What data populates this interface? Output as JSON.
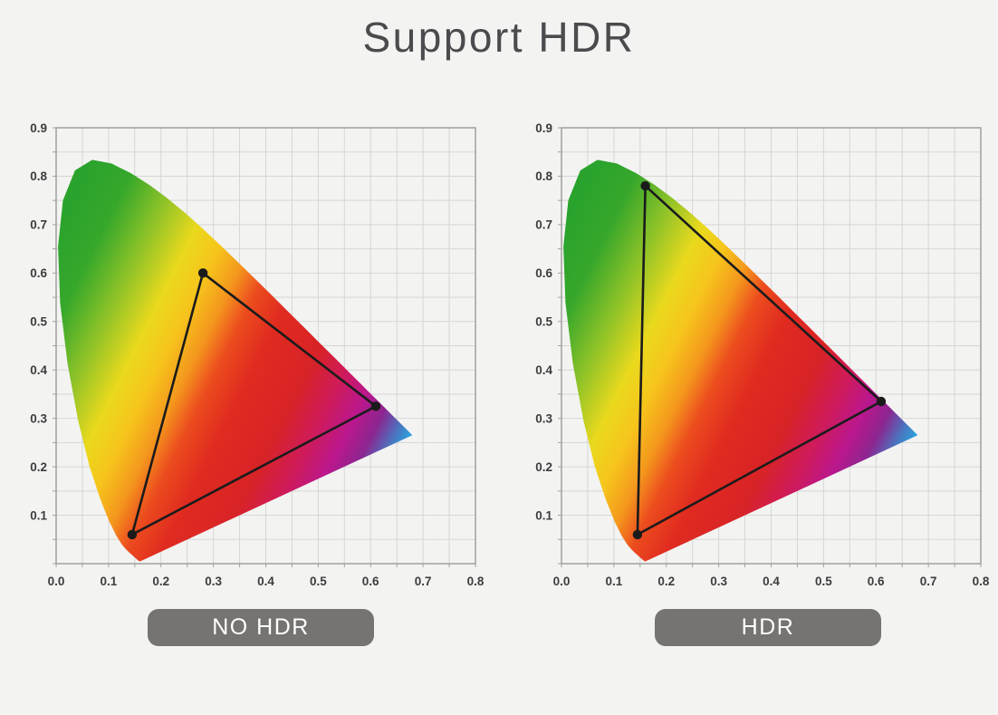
{
  "title": "Support HDR",
  "colors": {
    "background": "#f3f3f2",
    "title_text": "#4b4b4d",
    "grid_line": "#d6d6d4",
    "plot_border": "#a0a09e",
    "tick_text": "#3d3d3d",
    "triangle_line": "#1b1b1b",
    "button_bg": "#767472",
    "button_text": "#ffffff"
  },
  "gamut_gradient_stops": [
    [
      0.0,
      "#2aa32c"
    ],
    [
      0.1,
      "#36a72b"
    ],
    [
      0.2,
      "#8cc228"
    ],
    [
      0.3,
      "#ead91d"
    ],
    [
      0.37,
      "#f6c51c"
    ],
    [
      0.44,
      "#f4971d"
    ],
    [
      0.5,
      "#ec4c1e"
    ],
    [
      0.58,
      "#e02b20"
    ],
    [
      0.7,
      "#d82327"
    ],
    [
      0.78,
      "#cf1b59"
    ],
    [
      0.85,
      "#bc178c"
    ],
    [
      0.91,
      "#8d2590"
    ],
    [
      0.96,
      "#4a75c0"
    ],
    [
      1.0,
      "#28a8e1"
    ]
  ],
  "spectral_locus": [
    [
      0.1611,
      0.005
    ],
    [
      0.1608,
      0.0049
    ],
    [
      0.1603,
      0.0048
    ],
    [
      0.1597,
      0.0048
    ],
    [
      0.1586,
      0.0051
    ],
    [
      0.1562,
      0.0069
    ],
    [
      0.1521,
      0.0109
    ],
    [
      0.1449,
      0.0177
    ],
    [
      0.1397,
      0.0227
    ],
    [
      0.1332,
      0.0297
    ],
    [
      0.1253,
      0.0399
    ],
    [
      0.1148,
      0.0578
    ],
    [
      0.1014,
      0.0868
    ],
    [
      0.0845,
      0.1327
    ],
    [
      0.0636,
      0.2007
    ],
    [
      0.042,
      0.295
    ],
    [
      0.0217,
      0.4127
    ],
    [
      0.0076,
      0.5384
    ],
    [
      0.0036,
      0.6548
    ],
    [
      0.0129,
      0.7502
    ],
    [
      0.036,
      0.812
    ],
    [
      0.0687,
      0.8338
    ],
    [
      0.1056,
      0.8262
    ],
    [
      0.1431,
      0.8059
    ],
    [
      0.1784,
      0.7816
    ],
    [
      0.2124,
      0.7543
    ],
    [
      0.2459,
      0.7243
    ],
    [
      0.279,
      0.6923
    ],
    [
      0.312,
      0.6589
    ],
    [
      0.3451,
      0.6245
    ],
    [
      0.378,
      0.5896
    ],
    [
      0.4108,
      0.5547
    ],
    [
      0.4429,
      0.5202
    ],
    [
      0.4741,
      0.4866
    ],
    [
      0.5039,
      0.4544
    ],
    [
      0.5321,
      0.4242
    ],
    [
      0.5577,
      0.3965
    ],
    [
      0.58,
      0.3725
    ],
    [
      0.5996,
      0.3514
    ],
    [
      0.6159,
      0.334
    ],
    [
      0.6396,
      0.3083
    ],
    [
      0.6605,
      0.2859
    ],
    [
      0.6716,
      0.274
    ],
    [
      0.6796,
      0.2653
    ]
  ],
  "chart_data": [
    {
      "type": "area",
      "id": "no-hdr",
      "title": "NO HDR",
      "description": "CIE 1931 xy chromaticity diagram (spectral locus horseshoe filled with rainbow gradient) with standard color gamut triangle",
      "xlabel": "",
      "ylabel": "",
      "xlim": [
        0,
        0.8
      ],
      "ylim": [
        0,
        0.9
      ],
      "grid_step": 0.05,
      "grid": "on",
      "x_ticks": [
        "0.0",
        "0.1",
        "0.2",
        "0.3",
        "0.4",
        "0.5",
        "0.6",
        "0.7",
        "0.8"
      ],
      "y_ticks": [
        "0.1",
        "0.2",
        "0.3",
        "0.4",
        "0.5",
        "0.6",
        "0.7",
        "0.8",
        "0.9"
      ],
      "triangle_vertices": {
        "green": [
          0.28,
          0.6
        ],
        "red": [
          0.61,
          0.325
        ],
        "blue": [
          0.145,
          0.06
        ]
      }
    },
    {
      "type": "area",
      "id": "hdr",
      "title": "HDR",
      "description": "CIE 1931 xy chromaticity diagram (spectral locus horseshoe filled with rainbow gradient) with wide HDR color gamut triangle",
      "xlabel": "",
      "ylabel": "",
      "xlim": [
        0,
        0.8
      ],
      "ylim": [
        0,
        0.9
      ],
      "grid_step": 0.05,
      "grid": "on",
      "x_ticks": [
        "0.0",
        "0.1",
        "0.2",
        "0.3",
        "0.4",
        "0.5",
        "0.6",
        "0.7",
        "0.8"
      ],
      "y_ticks": [
        "0.1",
        "0.2",
        "0.3",
        "0.4",
        "0.5",
        "0.6",
        "0.7",
        "0.8",
        "0.9"
      ],
      "triangle_vertices": {
        "green": [
          0.16,
          0.78
        ],
        "red": [
          0.61,
          0.335
        ],
        "blue": [
          0.145,
          0.06
        ]
      }
    }
  ]
}
